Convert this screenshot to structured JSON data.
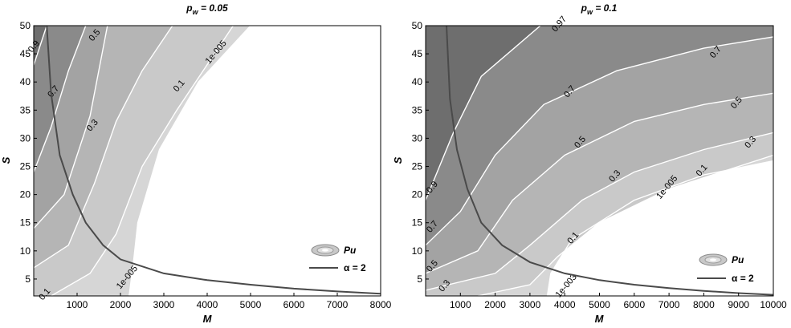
{
  "chart_data": [
    {
      "type": "contour",
      "title": "p_w = 0.05",
      "title_main": "p",
      "title_sub": "w",
      "title_rest": " = 0.05",
      "xlabel": "M",
      "ylabel": "S",
      "xlim": [
        0,
        8000
      ],
      "ylim": [
        2,
        50
      ],
      "xticks": [
        1000,
        2000,
        3000,
        4000,
        5000,
        6000,
        7000,
        8000
      ],
      "yticks": [
        5,
        10,
        15,
        20,
        25,
        30,
        35,
        40,
        45,
        50
      ],
      "legend": {
        "placement": "bottom-right",
        "entries": [
          "Pu",
          "α = 2"
        ]
      },
      "contours": [
        {
          "level": "0.9",
          "points": [
            [
              0,
              43
            ],
            [
              300,
              50
            ]
          ]
        },
        {
          "level": "0.7",
          "points": [
            [
              0,
              24
            ],
            [
              400,
              32
            ],
            [
              800,
              42
            ],
            [
              1200,
              50
            ]
          ]
        },
        {
          "level": "0.5",
          "points": [
            [
              0,
              14
            ],
            [
              700,
              20
            ],
            [
              1300,
              34
            ],
            [
              1700,
              50
            ]
          ]
        },
        {
          "level": "0.3",
          "points": [
            [
              0,
              7
            ],
            [
              800,
              11
            ],
            [
              1400,
              22
            ],
            [
              1900,
              33
            ],
            [
              2500,
              42
            ],
            [
              3200,
              50
            ]
          ]
        },
        {
          "level": "0.1",
          "points": [
            [
              400,
              2
            ],
            [
              1300,
              6
            ],
            [
              1900,
              13
            ],
            [
              2500,
              25
            ],
            [
              3300,
              35
            ],
            [
              4600,
              50
            ]
          ]
        },
        {
          "level": "1e-005",
          "points": [
            [
              2200,
              2
            ],
            [
              2300,
              8
            ],
            [
              2400,
              15
            ],
            [
              2900,
              28
            ],
            [
              3800,
              40
            ],
            [
              5000,
              50
            ]
          ]
        }
      ],
      "contour_labels": [
        {
          "text": "0.9",
          "x": 50,
          "y": 46
        },
        {
          "text": "0.7",
          "x": 500,
          "y": 38
        },
        {
          "text": "0.5",
          "x": 1450,
          "y": 48
        },
        {
          "text": "0.3",
          "x": 1400,
          "y": 32
        },
        {
          "text": "0.1",
          "x": 3400,
          "y": 39
        },
        {
          "text": "1e-005",
          "x": 4250,
          "y": 45
        },
        {
          "text": "1e-005",
          "x": 2200,
          "y": 5
        },
        {
          "text": "0.1",
          "x": 300,
          "y": 2
        }
      ],
      "alpha_curve": [
        [
          300,
          50
        ],
        [
          400,
          38
        ],
        [
          600,
          27
        ],
        [
          900,
          20
        ],
        [
          1200,
          15
        ],
        [
          1600,
          11
        ],
        [
          2000,
          8.5
        ],
        [
          3000,
          6
        ],
        [
          4000,
          4.8
        ],
        [
          5000,
          4
        ],
        [
          6000,
          3.3
        ],
        [
          7000,
          2.8
        ],
        [
          8000,
          2.4
        ]
      ]
    },
    {
      "type": "contour",
      "title": "p_w = 0.1",
      "title_main": "p",
      "title_sub": "w",
      "title_rest": " = 0.1",
      "xlabel": "M",
      "ylabel": "S",
      "xlim": [
        0,
        10000
      ],
      "ylim": [
        2,
        50
      ],
      "xticks": [
        1000,
        2000,
        3000,
        4000,
        5000,
        6000,
        7000,
        8000,
        9000,
        10000
      ],
      "yticks": [
        5,
        10,
        15,
        20,
        25,
        30,
        35,
        40,
        45,
        50
      ],
      "legend": {
        "placement": "bottom-right",
        "entries": [
          "Pu",
          "α = 2"
        ]
      },
      "contours": [
        {
          "level": "0.9",
          "points": [
            [
              0,
              19
            ],
            [
              800,
              31
            ],
            [
              1600,
              41
            ],
            [
              3300,
              50
            ]
          ]
        },
        {
          "level": "0.7",
          "points": [
            [
              0,
              11
            ],
            [
              1000,
              17
            ],
            [
              2000,
              27
            ],
            [
              3400,
              36
            ],
            [
              5500,
              42
            ],
            [
              8000,
              46
            ],
            [
              10000,
              48
            ]
          ]
        },
        {
          "level": "0.5",
          "points": [
            [
              0,
              6
            ],
            [
              1500,
              10
            ],
            [
              2500,
              19
            ],
            [
              4000,
              27
            ],
            [
              6000,
              33
            ],
            [
              8000,
              36
            ],
            [
              10000,
              38
            ]
          ]
        },
        {
          "level": "0.3",
          "points": [
            [
              0,
              3
            ],
            [
              2000,
              6
            ],
            [
              3000,
              11
            ],
            [
              4500,
              19
            ],
            [
              6000,
              24
            ],
            [
              8000,
              28
            ],
            [
              10000,
              31
            ]
          ]
        },
        {
          "level": "0.1",
          "points": [
            [
              1500,
              2
            ],
            [
              3000,
              4
            ],
            [
              3800,
              9
            ],
            [
              5000,
              15
            ],
            [
              7000,
              21
            ],
            [
              9000,
              25
            ],
            [
              10000,
              27
            ]
          ]
        },
        {
          "level": "1e-005",
          "points": [
            [
              3500,
              2
            ],
            [
              3600,
              6
            ],
            [
              4200,
              12
            ],
            [
              6000,
              19
            ],
            [
              8000,
              23.5
            ],
            [
              10000,
              26
            ]
          ]
        }
      ],
      "contour_labels": [
        {
          "text": "0.9",
          "x": 250,
          "y": 21
        },
        {
          "text": "0.97",
          "x": 3900,
          "y": 50
        },
        {
          "text": "0.7",
          "x": 250,
          "y": 14
        },
        {
          "text": "0.7",
          "x": 4200,
          "y": 38
        },
        {
          "text": "0.7",
          "x": 8400,
          "y": 45
        },
        {
          "text": "0.5",
          "x": 250,
          "y": 7
        },
        {
          "text": "0.5",
          "x": 4500,
          "y": 29
        },
        {
          "text": "0.5",
          "x": 9000,
          "y": 36
        },
        {
          "text": "0.3",
          "x": 600,
          "y": 3.5
        },
        {
          "text": "0.3",
          "x": 5500,
          "y": 23
        },
        {
          "text": "0.3",
          "x": 9400,
          "y": 29
        },
        {
          "text": "0.1",
          "x": 4300,
          "y": 12
        },
        {
          "text": "0.1",
          "x": 8000,
          "y": 24
        },
        {
          "text": "1e-005",
          "x": 7000,
          "y": 21
        },
        {
          "text": "1e-003",
          "x": 4100,
          "y": 3.5
        }
      ],
      "alpha_curve": [
        [
          600,
          50
        ],
        [
          700,
          37
        ],
        [
          900,
          28
        ],
        [
          1200,
          21
        ],
        [
          1600,
          15
        ],
        [
          2200,
          11
        ],
        [
          3000,
          8
        ],
        [
          4000,
          6
        ],
        [
          5000,
          4.8
        ],
        [
          6000,
          4
        ],
        [
          7000,
          3.4
        ],
        [
          8000,
          2.9
        ],
        [
          9000,
          2.5
        ],
        [
          10000,
          2.2
        ]
      ]
    }
  ]
}
